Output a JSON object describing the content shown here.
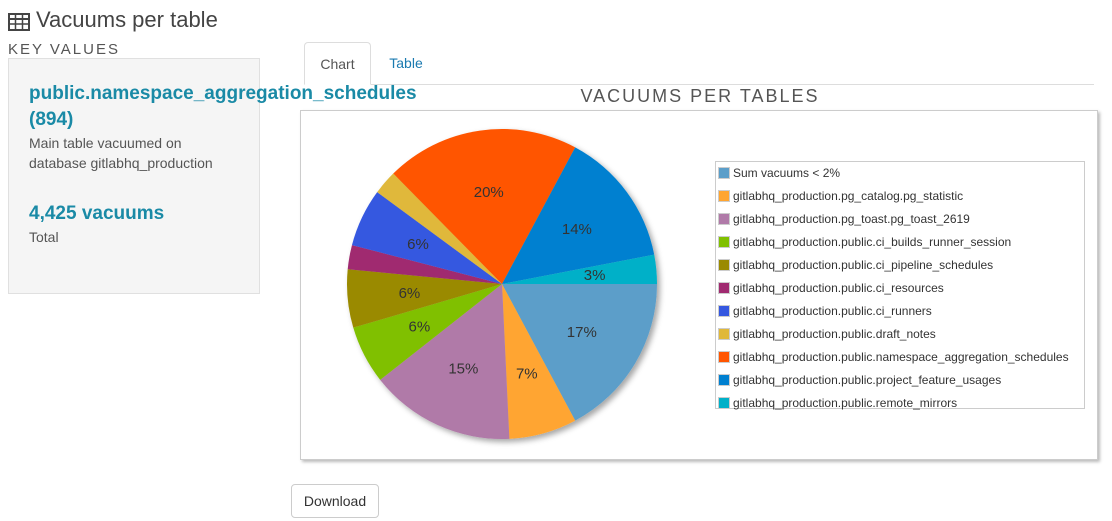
{
  "page": {
    "title": "Vacuums per table",
    "title_icon": "table-icon"
  },
  "key_values": {
    "heading": "Key values",
    "main_table": "public.namespace_aggregation_schedules",
    "main_count": "(894)",
    "main_desc": "Main table vacuumed on database gitlabhq_production",
    "total": "4,425 vacuums",
    "total_desc": "Total"
  },
  "tabs": [
    {
      "label": "Chart",
      "active": true
    },
    {
      "label": "Table",
      "active": false
    }
  ],
  "download_label": "Download",
  "chart_data": {
    "type": "pie",
    "title": "Vacuums per tables",
    "legend_position": "right",
    "slices": [
      {
        "name": "Sum vacuums < 2%",
        "value": 17,
        "label": "17%",
        "color": "#5b9ec9"
      },
      {
        "name": "gitlabhq_production.pg_catalog.pg_statistic",
        "value": 7,
        "label": "7%",
        "color": "#ffa530"
      },
      {
        "name": "gitlabhq_production.pg_toast.pg_toast_2619",
        "value": 15,
        "label": "15%",
        "color": "#b07aa8"
      },
      {
        "name": "gitlabhq_production.public.ci_builds_runner_session",
        "value": 6,
        "label": "6%",
        "color": "#80c000"
      },
      {
        "name": "gitlabhq_production.public.ci_pipeline_schedules",
        "value": 6,
        "label": "6%",
        "color": "#9a8a00"
      },
      {
        "name": "gitlabhq_production.public.ci_resources",
        "value": 2.5,
        "label": "",
        "color": "#a02a70"
      },
      {
        "name": "gitlabhq_production.public.ci_runners",
        "value": 6,
        "label": "6%",
        "color": "#3558e0"
      },
      {
        "name": "gitlabhq_production.public.draft_notes",
        "value": 2.5,
        "label": "",
        "color": "#e0b83a"
      },
      {
        "name": "gitlabhq_production.public.namespace_aggregation_schedules",
        "value": 20,
        "label": "20%",
        "color": "#ff5500"
      },
      {
        "name": "gitlabhq_production.public.project_feature_usages",
        "value": 14,
        "label": "14%",
        "color": "#0080d0"
      },
      {
        "name": "gitlabhq_production.public.remote_mirrors",
        "value": 3,
        "label": "3%",
        "color": "#00b0c8"
      }
    ]
  }
}
